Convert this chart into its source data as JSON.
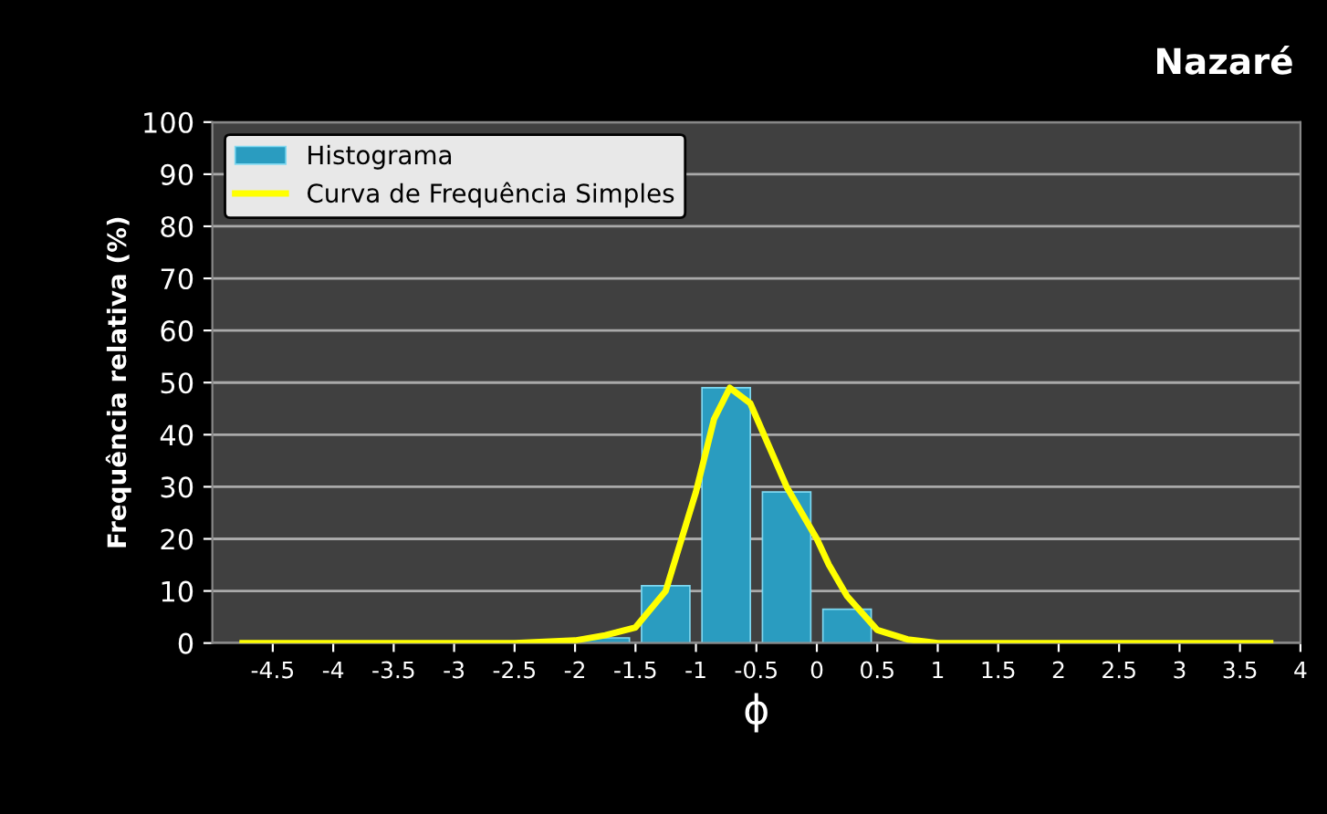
{
  "chart_data": {
    "type": "histogram",
    "title": "Nazaré",
    "xlabel": "ϕ",
    "ylabel": "Frequência relativa (%)",
    "bins": [
      -2,
      -1.5,
      -1,
      -0.5,
      0,
      0.5,
      1
    ],
    "series": [
      {
        "name": "Histograma",
        "color": "#2a9cc0",
        "values": [
          1,
          11,
          49,
          29,
          6.5,
          null
        ]
      },
      {
        "name": "Curva de Frequência Simples",
        "type": "line",
        "color": "#ffff00",
        "x": [
          -4.75,
          -3,
          -2.5,
          -2,
          -1.75,
          -1.5,
          -1.25,
          -1,
          -0.85,
          -0.72,
          -0.55,
          -0.4,
          -0.25,
          -0.1,
          0,
          0.1,
          0.25,
          0.5,
          0.75,
          1,
          1.5,
          3.75
        ],
        "values": [
          0,
          0,
          0,
          0.5,
          1.5,
          3,
          10,
          29,
          43,
          49,
          46,
          38,
          30,
          24,
          20,
          15,
          9,
          2.5,
          0.7,
          0,
          0,
          0
        ]
      }
    ],
    "xlim": [
      -5,
      4
    ],
    "xticks": [
      -4.5,
      -4,
      -3.5,
      -3,
      -2.5,
      -2,
      -1.5,
      -1,
      -0.5,
      0,
      0.5,
      1,
      1.5,
      2,
      2.5,
      3,
      3.5,
      4
    ],
    "ylim": [
      0,
      100
    ],
    "yticks": [
      0,
      10,
      20,
      30,
      40,
      50,
      60,
      70,
      80,
      90,
      100
    ],
    "grid": "y",
    "legend": "top left"
  }
}
